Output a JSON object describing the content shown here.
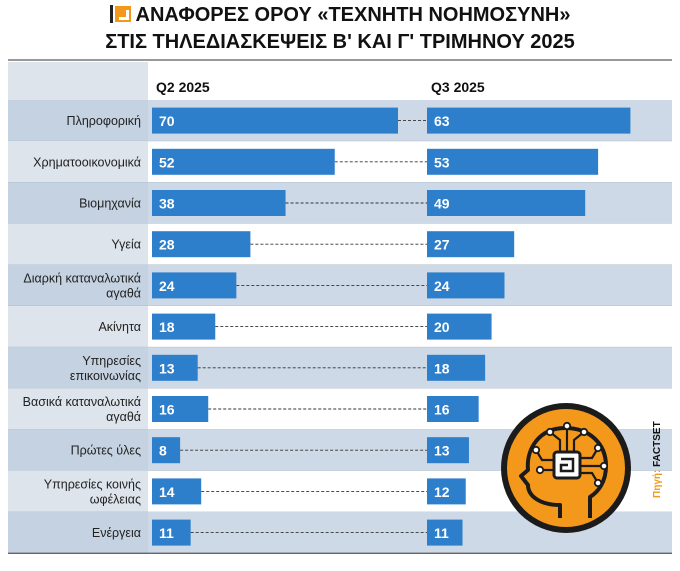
{
  "title": {
    "line1": "ΑΝΑΦΟΡΕΣ ΟΡΟΥ «ΤΕΧΝΗΤΗ ΝΟΗΜΟΣΥΝΗ»",
    "line2": "ΣΤΙΣ ΤΗΛΕΔΙΑΣΚΕΨΕΙΣ Β' ΚΑΙ Γ' ΤΡΙΜΗΝΟΥ 2025"
  },
  "source": {
    "prefix": "Πηγή:",
    "name": "FACTSET"
  },
  "colors": {
    "bar": "#2d7fcc",
    "label_band": "#dde4ec",
    "row_dark": "#cdd9e6",
    "row_light": "#ffffff",
    "accent": "#f3981b"
  },
  "icon": "ai-brain-chip-icon",
  "chart_data": {
    "type": "bar",
    "orientation": "horizontal",
    "categories": [
      "Πληροφορική",
      "Χρηματοοικονομικά",
      "Βιομηχανία",
      "Υγεία",
      "Διαρκή καταναλωτικά αγαθά",
      "Ακίνητα",
      "Υπηρεσίες επικοινωνίας",
      "Βασικά καταναλωτικά αγαθά",
      "Πρώτες ύλες",
      "Υπηρεσίες κοινής ωφέλειας",
      "Ενέργεια"
    ],
    "category_lines": [
      [
        "Πληροφορική"
      ],
      [
        "Χρηματοοικονομικά"
      ],
      [
        "Βιομηχανία"
      ],
      [
        "Υγεία"
      ],
      [
        "Διαρκή καταναλωτικά",
        "αγαθά"
      ],
      [
        "Ακίνητα"
      ],
      [
        "Υπηρεσίες",
        "επικοινωνίας"
      ],
      [
        "Βασικά καταναλωτικά",
        "αγαθά"
      ],
      [
        "Πρώτες ύλες"
      ],
      [
        "Υπηρεσίες κοινής",
        "ωφέλειας"
      ],
      [
        "Ενέργεια"
      ]
    ],
    "series": [
      {
        "name": "Q2 2025",
        "values": [
          70,
          52,
          38,
          28,
          24,
          18,
          13,
          16,
          8,
          14,
          11
        ]
      },
      {
        "name": "Q3 2025",
        "values": [
          63,
          53,
          49,
          27,
          24,
          20,
          18,
          16,
          13,
          12,
          11
        ]
      }
    ],
    "xlim": [
      0,
      70
    ],
    "legend": "column headers",
    "connectors": "dashed"
  }
}
